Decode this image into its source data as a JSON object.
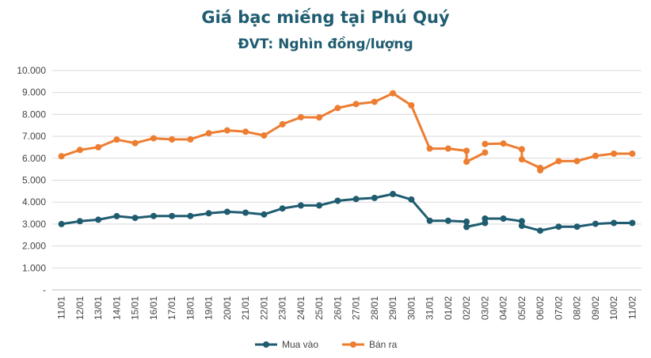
{
  "chart_data": {
    "type": "line",
    "title": "Giá bạc miếng tại Phú Quý",
    "subtitle": "ĐVT: Nghìn đồng/lượng",
    "xlabel": "",
    "ylabel": "",
    "ylim": [
      0,
      10000
    ],
    "y_ticks": [
      "-",
      "1.000",
      "2.000",
      "3.000",
      "4.000",
      "5.000",
      "6.000",
      "7.000",
      "8.000",
      "9.000",
      "10.000"
    ],
    "categories": [
      "11/01",
      "12/01",
      "13/01",
      "14/01",
      "15/01",
      "16/01",
      "17/01",
      "18/01",
      "19/01",
      "20/01",
      "21/01",
      "22/01",
      "23/01",
      "24/01",
      "25/01",
      "26/01",
      "27/01",
      "28/01",
      "29/01",
      "30/01",
      "31/01",
      "01/02",
      "02/02",
      "03/02",
      "04/02",
      "05/02",
      "06/02",
      "07/02",
      "08/02",
      "09/02",
      "10/02",
      "11/02"
    ],
    "grid": true,
    "legend_position": "bottom",
    "series": [
      {
        "name": "Mua vào",
        "color": "#1f5c70",
        "points": [
          [
            0,
            3000
          ],
          [
            1,
            3130
          ],
          [
            2,
            3200
          ],
          [
            3,
            3360
          ],
          [
            4,
            3280
          ],
          [
            5,
            3370
          ],
          [
            6,
            3370
          ],
          [
            7,
            3370
          ],
          [
            8,
            3490
          ],
          [
            9,
            3560
          ],
          [
            10,
            3520
          ],
          [
            11,
            3440
          ],
          [
            12,
            3710
          ],
          [
            13,
            3850
          ],
          [
            14,
            3850
          ],
          [
            15,
            4060
          ],
          [
            16,
            4140
          ],
          [
            17,
            4190
          ],
          [
            18,
            4370
          ],
          [
            19,
            4120
          ],
          [
            20,
            3150
          ],
          [
            21,
            3150
          ],
          [
            22,
            3110
          ],
          [
            22,
            2870
          ],
          [
            23,
            3050
          ],
          [
            23,
            3250
          ],
          [
            24,
            3250
          ],
          [
            25,
            3130
          ],
          [
            25,
            2920
          ],
          [
            26,
            2700
          ],
          [
            27,
            2880
          ],
          [
            28,
            2880
          ],
          [
            29,
            3010
          ],
          [
            30,
            3050
          ],
          [
            31,
            3050
          ]
        ],
        "breaks_after": [
          24
        ]
      },
      {
        "name": "Bán ra",
        "color": "#ed7d31",
        "points": [
          [
            0,
            6090
          ],
          [
            1,
            6380
          ],
          [
            2,
            6500
          ],
          [
            3,
            6850
          ],
          [
            4,
            6690
          ],
          [
            5,
            6910
          ],
          [
            6,
            6860
          ],
          [
            7,
            6860
          ],
          [
            8,
            7140
          ],
          [
            9,
            7270
          ],
          [
            10,
            7210
          ],
          [
            11,
            7040
          ],
          [
            12,
            7550
          ],
          [
            13,
            7870
          ],
          [
            14,
            7860
          ],
          [
            15,
            8290
          ],
          [
            16,
            8470
          ],
          [
            17,
            8570
          ],
          [
            18,
            8960
          ],
          [
            19,
            8410
          ],
          [
            20,
            6440
          ],
          [
            21,
            6440
          ],
          [
            22,
            6340
          ],
          [
            22,
            5840
          ],
          [
            23,
            6260
          ],
          [
            23,
            6650
          ],
          [
            24,
            6670
          ],
          [
            25,
            6410
          ],
          [
            25,
            5950
          ],
          [
            26,
            5560
          ],
          [
            26,
            5450
          ],
          [
            27,
            5870
          ],
          [
            28,
            5870
          ],
          [
            29,
            6110
          ],
          [
            30,
            6210
          ],
          [
            31,
            6210
          ]
        ],
        "breaks_after": [
          24
        ]
      }
    ]
  }
}
